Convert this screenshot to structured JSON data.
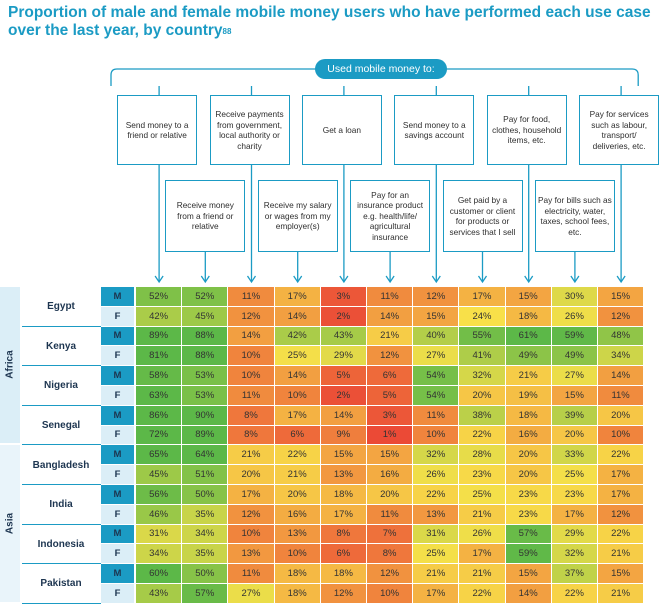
{
  "title": "Proportion of male and female mobile money users who have performed each use case over the last year, by country",
  "title_sup": "88",
  "header_label": "Used mobile money to:",
  "use_cases": [
    "Send money to a friend or relative",
    "Receive money from a friend or relative",
    "Receive payments from government, local authority or charity",
    "Receive my salary or wages from my employer(s)",
    "Get a loan",
    "Pay for an insurance product e.g. health/life/ agricultural insurance",
    "Send money to a savings account",
    "Get paid by a customer or client for products or services that I sell",
    "Pay for food, clothes, household items, etc.",
    "Pay for bills such as electricity, water, taxes, school fees, etc.",
    "Pay for services such as labour, transport/ deliveries, etc."
  ],
  "gender_labels": [
    "M",
    "F"
  ],
  "color_scale": {
    "low": "#ea4335",
    "mid": "#f8e049",
    "high": "#5cb848"
  },
  "chart_data": {
    "type": "heatmap",
    "title": "Proportion of male and female mobile money users who have performed each use case over the last year, by country",
    "unit": "%",
    "columns": [
      "Send money to a friend or relative",
      "Receive money from a friend or relative",
      "Receive payments from government, local authority or charity",
      "Receive my salary or wages from my employer(s)",
      "Get a loan",
      "Pay for an insurance product e.g. health/life/ agricultural insurance",
      "Send money to a savings account",
      "Get paid by a customer or client for products or services that I sell",
      "Pay for food, clothes, household items, etc.",
      "Pay for bills such as electricity, water, taxes, school fees, etc.",
      "Pay for services such as labour, transport/ deliveries, etc."
    ],
    "regions": [
      {
        "name": "Africa",
        "countries": [
          {
            "name": "Egypt",
            "M": [
              52,
              52,
              11,
              17,
              3,
              11,
              12,
              17,
              15,
              30,
              15
            ],
            "F": [
              42,
              45,
              12,
              14,
              2,
              14,
              15,
              24,
              18,
              26,
              12
            ]
          },
          {
            "name": "Kenya",
            "M": [
              89,
              88,
              14,
              42,
              43,
              21,
              40,
              55,
              61,
              59,
              48
            ],
            "F": [
              81,
              88,
              10,
              25,
              29,
              12,
              27,
              41,
              49,
              49,
              34
            ]
          },
          {
            "name": "Nigeria",
            "M": [
              58,
              53,
              10,
              14,
              5,
              6,
              54,
              32,
              21,
              27,
              14
            ],
            "F": [
              63,
              53,
              11,
              10,
              2,
              5,
              54,
              20,
              19,
              15,
              11
            ]
          },
          {
            "name": "Senegal",
            "M": [
              86,
              90,
              8,
              17,
              14,
              3,
              11,
              38,
              18,
              39,
              20
            ],
            "F": [
              72,
              89,
              8,
              6,
              9,
              1,
              10,
              22,
              16,
              20,
              10
            ]
          }
        ]
      },
      {
        "name": "Asia",
        "countries": [
          {
            "name": "Bangladesh",
            "M": [
              65,
              64,
              21,
              22,
              15,
              15,
              32,
              28,
              20,
              33,
              22
            ],
            "F": [
              45,
              51,
              20,
              21,
              13,
              16,
              26,
              23,
              20,
              25,
              17
            ]
          },
          {
            "name": "India",
            "M": [
              56,
              50,
              17,
              20,
              18,
              20,
              22,
              25,
              23,
              23,
              17
            ],
            "F": [
              46,
              35,
              12,
              16,
              17,
              11,
              13,
              21,
              23,
              17,
              12
            ]
          },
          {
            "name": "Indonesia",
            "M": [
              31,
              34,
              10,
              13,
              8,
              7,
              31,
              26,
              57,
              29,
              22
            ],
            "F": [
              34,
              35,
              13,
              10,
              6,
              8,
              25,
              17,
              59,
              32,
              21
            ]
          },
          {
            "name": "Pakistan",
            "M": [
              60,
              50,
              11,
              18,
              18,
              12,
              21,
              21,
              15,
              37,
              15
            ],
            "F": [
              43,
              57,
              27,
              18,
              12,
              10,
              17,
              22,
              14,
              22,
              21
            ]
          }
        ]
      }
    ]
  }
}
